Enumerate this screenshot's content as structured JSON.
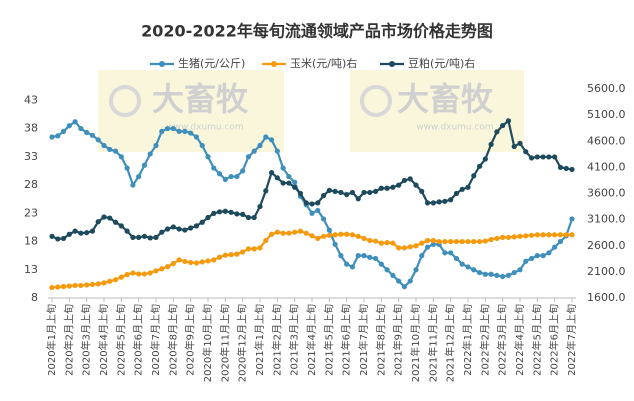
{
  "chart_data": {
    "type": "line",
    "title": "2020-2022年每旬流通领域产品市场价格走势图",
    "watermark": [
      "大畜牧",
      "www.dxumu.com"
    ],
    "categories": [
      "2020年1月上旬",
      null,
      null,
      "2020年2月上旬",
      null,
      null,
      "2020年3月上旬",
      null,
      null,
      "2020年4月上旬",
      null,
      null,
      "2020年5月上旬",
      null,
      null,
      "2020年6月上旬",
      null,
      null,
      "2020年7月上旬",
      null,
      null,
      "2020年8月上旬",
      null,
      null,
      "2020年9月上旬",
      null,
      null,
      "2020年10月上旬",
      null,
      null,
      "2020年11月上旬",
      null,
      null,
      "2020年12月上旬",
      null,
      null,
      "2021年1月上旬",
      null,
      null,
      "2021年2月上旬",
      null,
      null,
      "2021年3月上旬",
      null,
      null,
      "2021年4月上旬",
      null,
      null,
      "2021年5月上旬",
      null,
      null,
      "2021年6月上旬",
      null,
      null,
      "2021年7月上旬",
      null,
      null,
      "2021年8月上旬",
      null,
      null,
      "2021年9月上旬",
      null,
      null,
      "2021年10月上旬",
      null,
      null,
      "2021年11月上旬",
      null,
      null,
      "2021年12月上旬",
      null,
      null,
      "2022年1月上旬",
      null,
      null,
      "2022年2月上旬",
      null,
      null,
      "2022年3月上旬",
      null,
      null,
      "2022年4月上旬",
      null,
      null,
      "2022年5月上旬",
      null,
      null,
      "2022年6月上旬",
      null,
      null,
      "2022年7月上旬"
    ],
    "series": [
      {
        "name": "生猪(元/公斤)",
        "color": "#3f8fbd",
        "axis": "y",
        "values": [
          36.5,
          36.7,
          37.5,
          38.5,
          39.2,
          38,
          37.3,
          36.8,
          36,
          35,
          34.3,
          34,
          33,
          31,
          28,
          29.5,
          31.5,
          33.5,
          35,
          37.5,
          38,
          38,
          37.5,
          37.5,
          37.2,
          36.5,
          35,
          33,
          31,
          30,
          29,
          29.5,
          29.5,
          30.5,
          33,
          34,
          35,
          36.5,
          36,
          34,
          31,
          29.5,
          28.5,
          26,
          24.5,
          23,
          23.5,
          22,
          20,
          17.5,
          15.5,
          14,
          13.5,
          15.5,
          15.5,
          15.2,
          15,
          14,
          13,
          12,
          11,
          10,
          11,
          13,
          15.5,
          17,
          17.5,
          17.5,
          16,
          16,
          15,
          14,
          13.5,
          13,
          12.5,
          12.2,
          12.2,
          12,
          11.8,
          12,
          12.5,
          13,
          14.5,
          15,
          15.5,
          15.5,
          16,
          17,
          18,
          19,
          22
        ]
      },
      {
        "name": "玉米(元/吨)右",
        "color": "#f59a0c",
        "axis": "y2",
        "values": [
          1800,
          1810,
          1820,
          1830,
          1840,
          1840,
          1850,
          1860,
          1870,
          1890,
          1920,
          1950,
          2000,
          2050,
          2080,
          2060,
          2060,
          2080,
          2120,
          2160,
          2200,
          2260,
          2330,
          2300,
          2280,
          2270,
          2290,
          2310,
          2330,
          2380,
          2420,
          2430,
          2440,
          2480,
          2540,
          2540,
          2560,
          2700,
          2820,
          2860,
          2840,
          2840,
          2860,
          2880,
          2840,
          2790,
          2740,
          2780,
          2800,
          2810,
          2820,
          2820,
          2810,
          2780,
          2740,
          2700,
          2690,
          2650,
          2660,
          2650,
          2560,
          2560,
          2580,
          2600,
          2650,
          2700,
          2700,
          2680,
          2680,
          2680,
          2680,
          2680,
          2680,
          2680,
          2680,
          2690,
          2720,
          2740,
          2760,
          2760,
          2770,
          2780,
          2790,
          2800,
          2810,
          2810,
          2810,
          2810,
          2810,
          2810,
          2810
        ]
      },
      {
        "name": "豆粕(元/吨)右",
        "color": "#1d4a5c",
        "axis": "y2",
        "values": [
          2780,
          2730,
          2740,
          2820,
          2880,
          2840,
          2850,
          2880,
          3060,
          3150,
          3130,
          3050,
          2980,
          2880,
          2760,
          2760,
          2780,
          2750,
          2760,
          2860,
          2920,
          2960,
          2920,
          2900,
          2940,
          2980,
          3050,
          3140,
          3220,
          3250,
          3260,
          3240,
          3210,
          3200,
          3140,
          3140,
          3350,
          3650,
          4000,
          3900,
          3800,
          3800,
          3720,
          3600,
          3420,
          3400,
          3420,
          3560,
          3660,
          3640,
          3620,
          3580,
          3620,
          3500,
          3620,
          3620,
          3640,
          3700,
          3700,
          3720,
          3760,
          3850,
          3880,
          3760,
          3640,
          3420,
          3420,
          3440,
          3450,
          3480,
          3600,
          3680,
          3720,
          3940,
          4120,
          4260,
          4540,
          4780,
          4900,
          4990,
          4500,
          4560,
          4400,
          4280,
          4300,
          4300,
          4300,
          4300,
          4100,
          4080,
          4060
        ]
      }
    ],
    "ylim": [
      8,
      45
    ],
    "yticks": [
      8,
      13,
      18,
      23,
      28,
      33,
      38,
      43
    ],
    "y2lim": [
      1600,
      5600
    ],
    "y2ticks": [
      {
        "value": 1600,
        "label": "1600.0"
      },
      {
        "value": 2100,
        "label": "2100.0"
      },
      {
        "value": 2600,
        "label": "2600.0"
      },
      {
        "value": 3100,
        "label": "3100.0"
      },
      {
        "value": 3600,
        "label": "3600.0"
      },
      {
        "value": 4100,
        "label": "4100.0"
      },
      {
        "value": 4600,
        "label": "4600.0"
      },
      {
        "value": 5100,
        "label": "5100.0"
      },
      {
        "value": 5600,
        "label": "5600.0"
      }
    ],
    "legend": "top"
  }
}
